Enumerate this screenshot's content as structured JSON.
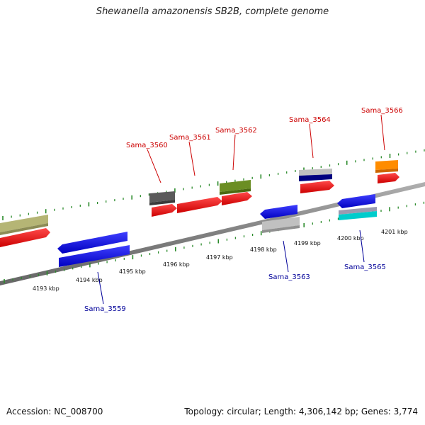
{
  "title": "Shewanella amazonensis SB2B, complete genome",
  "footer": {
    "accession": "Accession: NC_008700",
    "stats": "Topology: circular; Length: 4,306,142 bp; Genes: 3,774"
  },
  "colors": {
    "backbone": "#8c8c8c",
    "ruler_tick": "#2a8a2a",
    "forward_label": "#cc0000",
    "reverse_label": "#000099"
  },
  "ruler": {
    "labels": [
      "4193 kbp",
      "4194 kbp",
      "4195 kbp",
      "4196 kbp",
      "4197 kbp",
      "4198 kbp",
      "4199 kbp",
      "4200 kbp",
      "4201 kbp"
    ]
  },
  "genes_forward": [
    {
      "name": "Sama_3560",
      "color": "#cc0000"
    },
    {
      "name": "Sama_3561",
      "color": "#cc0000"
    },
    {
      "name": "Sama_3562",
      "color": "#cc0000"
    },
    {
      "name": "Sama_3564",
      "color": "#cc0000"
    },
    {
      "name": "Sama_3566",
      "color": "#cc0000"
    }
  ],
  "genes_reverse": [
    {
      "name": "Sama_3559",
      "color": "#000099"
    },
    {
      "name": "Sama_3563",
      "color": "#000099"
    },
    {
      "name": "Sama_3565",
      "color": "#000099"
    }
  ],
  "features": [
    {
      "type": "CDS",
      "strand": "+",
      "color": "#ff0000"
    },
    {
      "type": "CDS",
      "strand": "-",
      "color": "#0000ff"
    },
    {
      "type": "other",
      "color": "#b5b575"
    },
    {
      "type": "other",
      "color": "#5a5a5a"
    },
    {
      "type": "other",
      "color": "#6b8e23"
    },
    {
      "type": "other",
      "color": "#c0c0c0"
    },
    {
      "type": "other",
      "color": "#000080"
    },
    {
      "type": "other",
      "color": "#ff8c00"
    },
    {
      "type": "other",
      "color": "#00cccc"
    }
  ]
}
